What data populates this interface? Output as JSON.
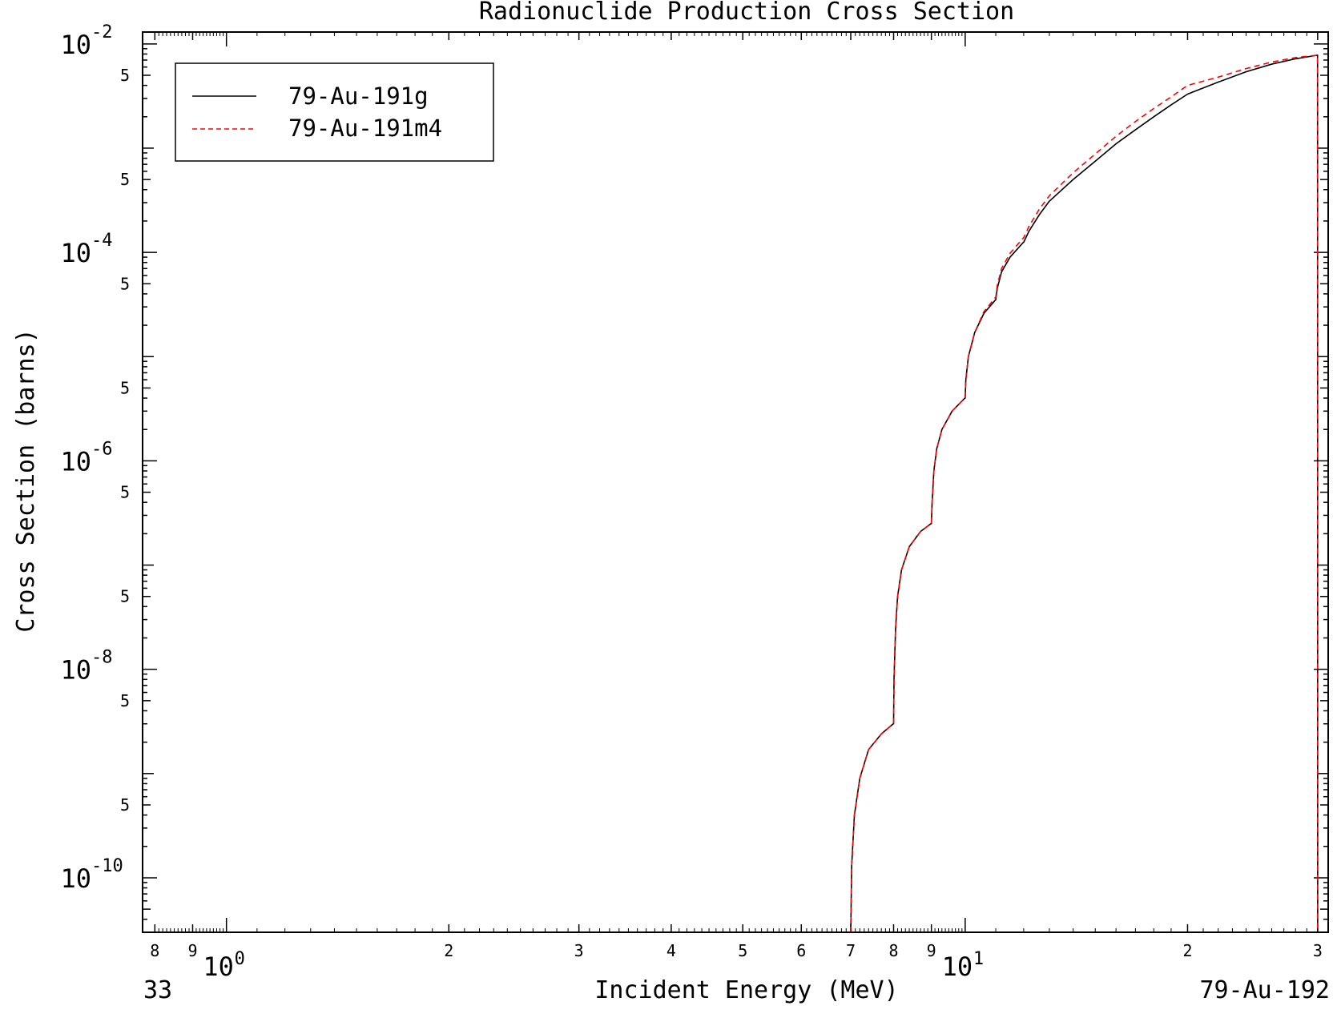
{
  "chart_data": {
    "type": "line",
    "title": "Radionuclide Production Cross Section",
    "xlabel": "Incident Energy (MeV)",
    "ylabel": "Cross Section (barns)",
    "x_scale": "log",
    "y_scale": "log",
    "xlim": [
      0.77,
      31
    ],
    "ylim": [
      3e-11,
      0.013
    ],
    "grid": false,
    "legend_position": "top-left",
    "footer_left": "33",
    "footer_right": "79-Au-192",
    "x_major_ticks": [
      {
        "value": 1,
        "base": "10",
        "exp": "0"
      },
      {
        "value": 10,
        "base": "10",
        "exp": "1"
      }
    ],
    "x_minor_labels": [
      {
        "value": 0.8,
        "label": "8"
      },
      {
        "value": 0.9,
        "label": "9"
      },
      {
        "value": 2,
        "label": "2"
      },
      {
        "value": 3,
        "label": "3"
      },
      {
        "value": 4,
        "label": "4"
      },
      {
        "value": 5,
        "label": "5"
      },
      {
        "value": 6,
        "label": "6"
      },
      {
        "value": 7,
        "label": "7"
      },
      {
        "value": 8,
        "label": "8"
      },
      {
        "value": 9,
        "label": "9"
      },
      {
        "value": 20,
        "label": "2"
      },
      {
        "value": 30,
        "label": "3"
      }
    ],
    "y_major_ticks": [
      {
        "value": 0.01,
        "base": "10",
        "exp": "-2"
      },
      {
        "value": 0.0001,
        "base": "10",
        "exp": "-4"
      },
      {
        "value": 1e-06,
        "base": "10",
        "exp": "-6"
      },
      {
        "value": 1e-08,
        "base": "10",
        "exp": "-8"
      },
      {
        "value": 1e-10,
        "base": "10",
        "exp": "-10"
      }
    ],
    "y_minor_labels": [
      {
        "value": 0.005,
        "label": "5"
      },
      {
        "value": 0.0005,
        "label": "5"
      },
      {
        "value": 5e-05,
        "label": "5"
      },
      {
        "value": 5e-06,
        "label": "5"
      },
      {
        "value": 5e-07,
        "label": "5"
      },
      {
        "value": 5e-08,
        "label": "5"
      },
      {
        "value": 5e-09,
        "label": "5"
      },
      {
        "value": 5e-10,
        "label": "5"
      }
    ],
    "series": [
      {
        "name": "79-Au-191g",
        "color": "#000000",
        "dash": "solid",
        "points": [
          [
            7.0,
            3e-11
          ],
          [
            7.02,
            1.3e-10
          ],
          [
            7.08,
            4e-10
          ],
          [
            7.2,
            9e-10
          ],
          [
            7.4,
            1.7e-09
          ],
          [
            7.7,
            2.4e-09
          ],
          [
            7.99,
            3e-09
          ],
          [
            8.0,
            3e-09
          ],
          [
            8.01,
            8e-09
          ],
          [
            8.05,
            2.5e-08
          ],
          [
            8.1,
            5e-08
          ],
          [
            8.2,
            9e-08
          ],
          [
            8.4,
            1.5e-07
          ],
          [
            8.7,
            2.1e-07
          ],
          [
            8.99,
            2.5e-07
          ],
          [
            9.0,
            2.5e-07
          ],
          [
            9.02,
            4e-07
          ],
          [
            9.07,
            8e-07
          ],
          [
            9.15,
            1.3e-06
          ],
          [
            9.3,
            2e-06
          ],
          [
            9.6,
            3e-06
          ],
          [
            9.99,
            4e-06
          ],
          [
            10.0,
            4e-06
          ],
          [
            10.02,
            6e-06
          ],
          [
            10.1,
            1e-05
          ],
          [
            10.3,
            1.7e-05
          ],
          [
            10.6,
            2.6e-05
          ],
          [
            10.99,
            3.5e-05
          ],
          [
            11.0,
            3.5e-05
          ],
          [
            11.05,
            4.5e-05
          ],
          [
            11.2,
            6.5e-05
          ],
          [
            11.5,
            9e-05
          ],
          [
            11.99,
            0.000125
          ],
          [
            12.0,
            0.000125
          ],
          [
            12.2,
            0.00016
          ],
          [
            12.6,
            0.00023
          ],
          [
            13.0,
            0.00031
          ],
          [
            14.0,
            0.0005
          ],
          [
            15.0,
            0.00075
          ],
          [
            16.0,
            0.0011
          ],
          [
            17.0,
            0.0015
          ],
          [
            18.0,
            0.002
          ],
          [
            19.0,
            0.0026
          ],
          [
            20.0,
            0.0033
          ],
          [
            22.0,
            0.0043
          ],
          [
            24.0,
            0.0054
          ],
          [
            26.0,
            0.0064
          ],
          [
            28.0,
            0.0072
          ],
          [
            29.99,
            0.0078
          ],
          [
            30.0,
            3e-11
          ]
        ]
      },
      {
        "name": "79-Au-191m4",
        "color": "#ff0000",
        "dash": "dashed",
        "points": [
          [
            7.0,
            3e-11
          ],
          [
            7.02,
            1.3e-10
          ],
          [
            7.08,
            4e-10
          ],
          [
            7.2,
            9e-10
          ],
          [
            7.4,
            1.7e-09
          ],
          [
            7.7,
            2.4e-09
          ],
          [
            7.99,
            3e-09
          ],
          [
            8.0,
            3e-09
          ],
          [
            8.01,
            8e-09
          ],
          [
            8.05,
            2.5e-08
          ],
          [
            8.1,
            5e-08
          ],
          [
            8.2,
            9e-08
          ],
          [
            8.4,
            1.5e-07
          ],
          [
            8.7,
            2.1e-07
          ],
          [
            8.99,
            2.5e-07
          ],
          [
            9.0,
            2.5e-07
          ],
          [
            9.02,
            4e-07
          ],
          [
            9.07,
            8e-07
          ],
          [
            9.15,
            1.3e-06
          ],
          [
            9.3,
            2e-06
          ],
          [
            9.6,
            3e-06
          ],
          [
            9.99,
            4e-06
          ],
          [
            10.0,
            4e-06
          ],
          [
            10.02,
            6e-06
          ],
          [
            10.1,
            1e-05
          ],
          [
            10.3,
            1.7e-05
          ],
          [
            10.6,
            2.7e-05
          ],
          [
            10.99,
            3.7e-05
          ],
          [
            11.0,
            3.7e-05
          ],
          [
            11.05,
            4.8e-05
          ],
          [
            11.2,
            7e-05
          ],
          [
            11.5,
            9.8e-05
          ],
          [
            11.99,
            0.000138
          ],
          [
            12.0,
            0.000138
          ],
          [
            12.2,
            0.000178
          ],
          [
            12.6,
            0.00026
          ],
          [
            13.0,
            0.00035
          ],
          [
            14.0,
            0.00058
          ],
          [
            15.0,
            0.00088
          ],
          [
            16.0,
            0.0013
          ],
          [
            17.0,
            0.0018
          ],
          [
            18.0,
            0.0024
          ],
          [
            19.0,
            0.0031
          ],
          [
            20.0,
            0.004
          ],
          [
            22.0,
            0.0048
          ],
          [
            24.0,
            0.0058
          ],
          [
            26.0,
            0.0067
          ],
          [
            28.0,
            0.0074
          ],
          [
            29.99,
            0.0078
          ],
          [
            30.0,
            3e-11
          ]
        ]
      }
    ]
  }
}
